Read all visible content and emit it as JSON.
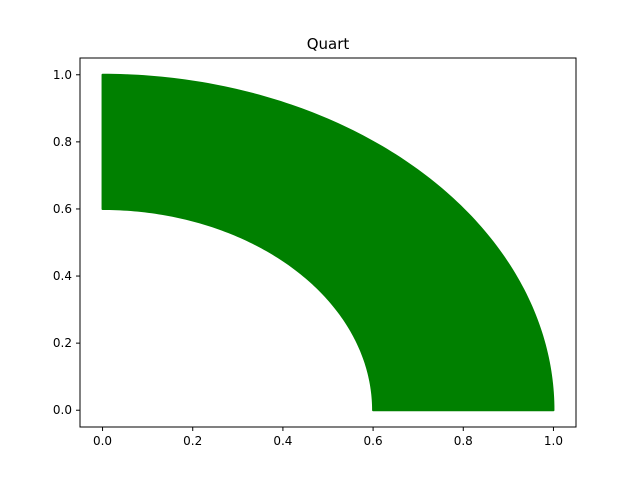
{
  "chart_data": {
    "type": "area",
    "title": "Quart",
    "xlabel": "",
    "ylabel": "",
    "xlim": [
      -0.05,
      1.05
    ],
    "ylim": [
      -0.05,
      1.05
    ],
    "xticks": [
      0.0,
      0.2,
      0.4,
      0.6,
      0.8,
      1.0
    ],
    "yticks": [
      0.0,
      0.2,
      0.4,
      0.6,
      0.8,
      1.0
    ],
    "xtick_labels": [
      "0.0",
      "0.2",
      "0.4",
      "0.6",
      "0.8",
      "1.0"
    ],
    "ytick_labels": [
      "0.0",
      "0.2",
      "0.4",
      "0.6",
      "0.8",
      "1.0"
    ],
    "grid": false,
    "series": [
      {
        "shape": "quarter-annulus",
        "center": [
          0,
          0
        ],
        "inner_radius": 0.6,
        "outer_radius": 1.0,
        "angle_range_deg": [
          0,
          90
        ],
        "color": "#008000"
      }
    ]
  }
}
